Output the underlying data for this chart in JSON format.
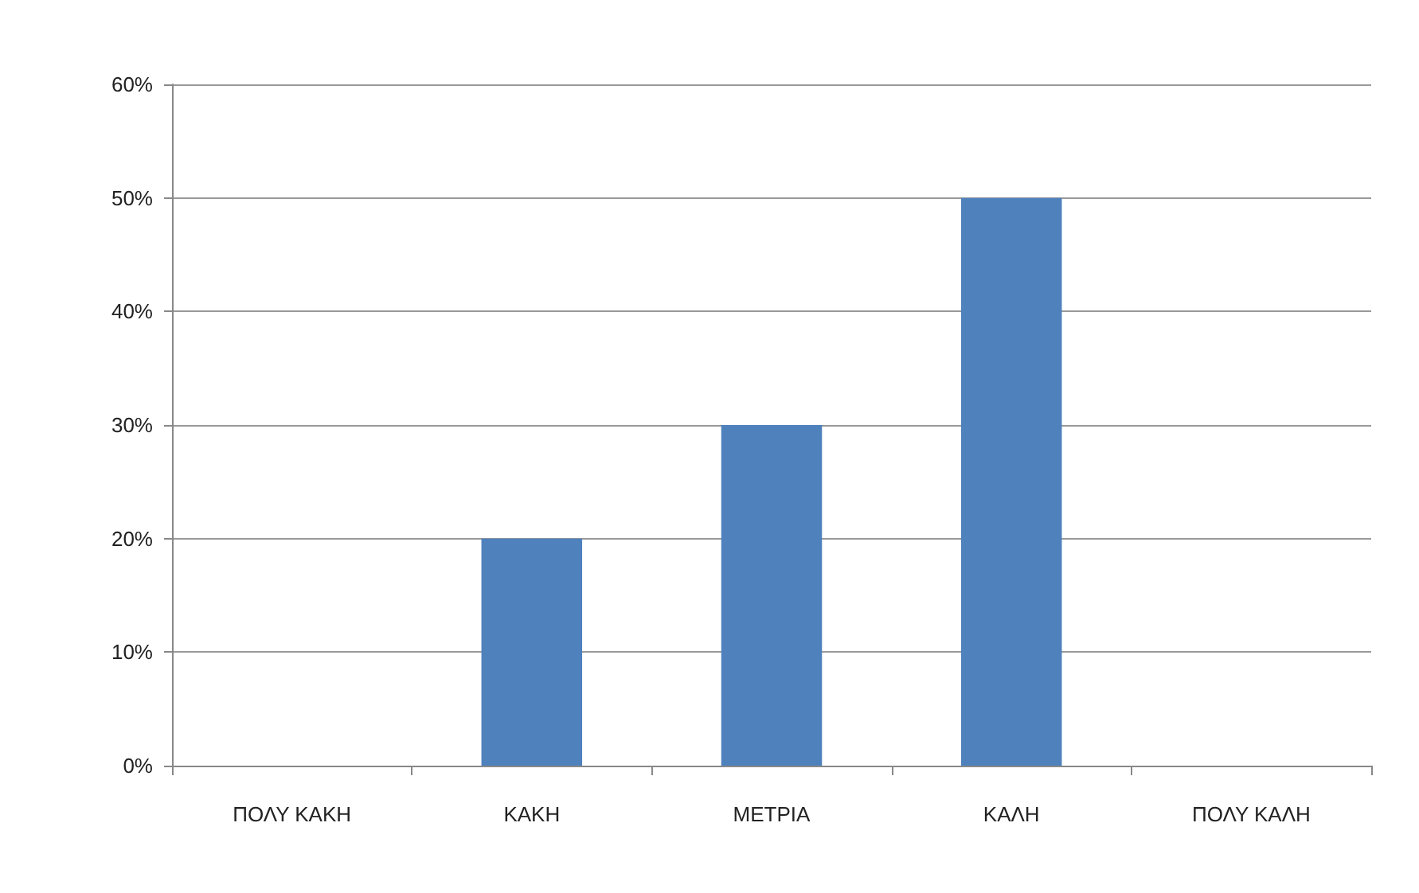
{
  "chart_data": {
    "type": "bar",
    "categories": [
      "ΠΟΛΥ ΚΑΚΗ",
      "ΚΑΚΗ",
      "ΜΕΤΡΙΑ",
      "ΚΑΛΗ",
      "ΠΟΛΥ ΚΑΛΗ"
    ],
    "values": [
      0,
      20,
      30,
      50,
      0
    ],
    "color": "#4f81bd",
    "ylim": [
      0,
      60
    ],
    "yticks": [
      {
        "value": 0,
        "label": "0%"
      },
      {
        "value": 10,
        "label": "10%"
      },
      {
        "value": 20,
        "label": "20%"
      },
      {
        "value": 30,
        "label": "30%"
      },
      {
        "value": 40,
        "label": "40%"
      },
      {
        "value": 50,
        "label": "50%"
      },
      {
        "value": 60,
        "label": "60%"
      }
    ],
    "grid": "y"
  }
}
